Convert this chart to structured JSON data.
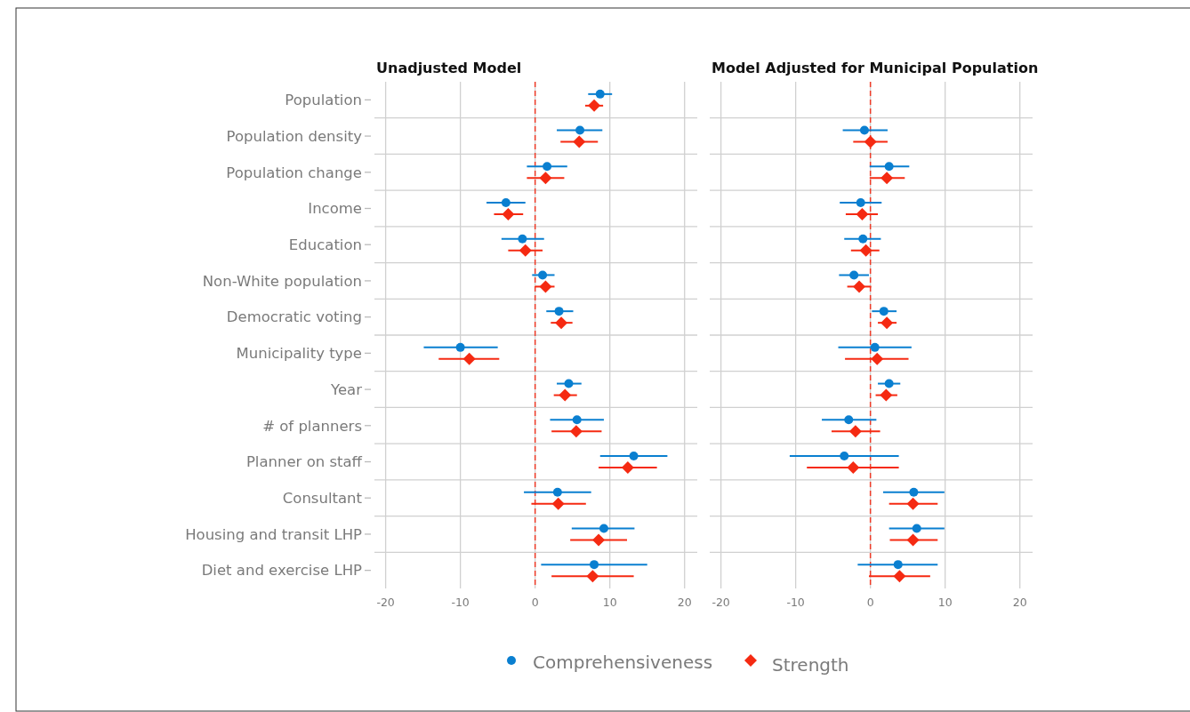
{
  "chart_data": [
    {
      "type": "scatter",
      "orientation": "horizontal",
      "title": "Unadjusted Model",
      "categories": [
        "Population",
        "Population density",
        "Population change",
        "Income",
        "Education",
        "Non-White population",
        "Democratic voting",
        "Municipality type",
        "Year",
        "# of planners",
        "Planner on staff",
        "Consultant",
        "Housing and transit LHP",
        "Diet and exercise LHP"
      ],
      "xlim": [
        -21.5,
        21.7
      ],
      "xticks": [
        -20,
        -10,
        0,
        10,
        20
      ],
      "grid": true,
      "legend": "bottom",
      "ref_lines": [
        {
          "axis": "x",
          "value": 0,
          "color": "#f03c28",
          "line_style": "dashed"
        }
      ],
      "series": [
        {
          "name": "Comprehensiveness",
          "color": "#0a7fd0",
          "marker": "circle",
          "values": [
            8.7,
            6.0,
            1.6,
            -3.9,
            -1.7,
            1.0,
            3.2,
            -10.0,
            4.5,
            5.6,
            13.2,
            3.0,
            9.2,
            7.9
          ],
          "errors": [
            [
              7.1,
              10.3
            ],
            [
              2.9,
              9.0
            ],
            [
              -1.1,
              4.3
            ],
            [
              -6.5,
              -1.3
            ],
            [
              -4.5,
              1.2
            ],
            [
              -0.4,
              2.6
            ],
            [
              1.5,
              5.1
            ],
            [
              -14.9,
              -5.0
            ],
            [
              2.9,
              6.2
            ],
            [
              2.0,
              9.2
            ],
            [
              8.7,
              17.7
            ],
            [
              -1.5,
              7.5
            ],
            [
              4.9,
              13.3
            ],
            [
              0.8,
              15.0
            ]
          ]
        },
        {
          "name": "Strength",
          "color": "#f52a12",
          "marker": "diamond",
          "values": [
            7.9,
            5.9,
            1.4,
            -3.6,
            -1.3,
            1.4,
            3.5,
            -8.8,
            4.0,
            5.5,
            12.4,
            3.1,
            8.5,
            7.7
          ],
          "errors": [
            [
              6.7,
              9.1
            ],
            [
              3.4,
              8.4
            ],
            [
              -1.1,
              3.9
            ],
            [
              -5.5,
              -1.6
            ],
            [
              -3.6,
              1.0
            ],
            [
              0,
              2.6
            ],
            [
              2.1,
              5.0
            ],
            [
              -12.9,
              -4.8
            ],
            [
              2.5,
              5.6
            ],
            [
              2.2,
              8.9
            ],
            [
              8.5,
              16.3
            ],
            [
              -0.5,
              6.8
            ],
            [
              4.7,
              12.3
            ],
            [
              2.2,
              13.2
            ]
          ]
        }
      ]
    },
    {
      "type": "scatter",
      "orientation": "horizontal",
      "title": "Model Adjusted for Municipal Population",
      "categories": [
        "Population",
        "Population density",
        "Population change",
        "Income",
        "Education",
        "Non-White population",
        "Democratic voting",
        "Municipality type",
        "Year",
        "# of planners",
        "Planner on staff",
        "Consultant",
        "Housing and transit LHP",
        "Diet and exercise LHP"
      ],
      "tick_labels": "x",
      "xlim": [
        -21.5,
        21.7
      ],
      "xticks": [
        -20,
        -10,
        0,
        10,
        20
      ],
      "grid": true,
      "ref_lines": [
        {
          "axis": "x",
          "value": 0,
          "color": "#f03c28",
          "line_style": "dashed"
        }
      ],
      "series": [
        {
          "name": "Comprehensiveness",
          "color": "#0a7fd0",
          "marker": "circle",
          "values": [
            null,
            -0.8,
            2.5,
            -1.3,
            -1.0,
            -2.2,
            1.8,
            0.6,
            2.5,
            -2.9,
            -3.5,
            5.8,
            6.2,
            3.7
          ],
          "errors": [
            null,
            [
              -3.7,
              2.3
            ],
            [
              -0.1,
              5.2
            ],
            [
              -4.1,
              1.5
            ],
            [
              -3.5,
              1.4
            ],
            [
              -4.2,
              -0.2
            ],
            [
              0.2,
              3.5
            ],
            [
              -4.3,
              5.5
            ],
            [
              1.0,
              4.0
            ],
            [
              -6.5,
              0.8
            ],
            [
              -10.8,
              3.8
            ],
            [
              1.7,
              9.9
            ],
            [
              2.5,
              9.9
            ],
            [
              -1.7,
              9.0
            ]
          ]
        },
        {
          "name": "Strength",
          "color": "#f52a12",
          "marker": "diamond",
          "values": [
            null,
            0,
            2.2,
            -1.1,
            -0.6,
            -1.5,
            2.2,
            0.9,
            2.1,
            -2.0,
            -2.3,
            5.7,
            5.7,
            3.9
          ],
          "errors": [
            null,
            [
              -2.3,
              2.3
            ],
            [
              -0.1,
              4.6
            ],
            [
              -3.3,
              1.0
            ],
            [
              -2.6,
              1.2
            ],
            [
              -3.1,
              0.1
            ],
            [
              1.0,
              3.5
            ],
            [
              -3.4,
              5.1
            ],
            [
              0.7,
              3.6
            ],
            [
              -5.2,
              1.3
            ],
            [
              -8.5,
              3.8
            ],
            [
              2.5,
              9.0
            ],
            [
              2.6,
              9.0
            ],
            [
              -0.2,
              8.0
            ]
          ]
        }
      ]
    }
  ]
}
